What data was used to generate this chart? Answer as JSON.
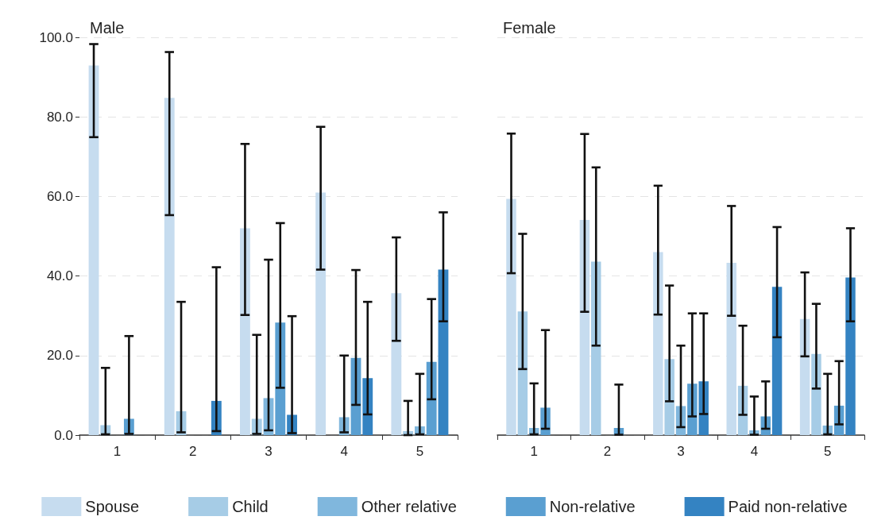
{
  "chart_data": [
    {
      "type": "bar",
      "title": "Male",
      "categories": [
        "1",
        "2",
        "3",
        "4",
        "5"
      ],
      "ylim": [
        0,
        100
      ],
      "yticks": [
        {
          "value": 0,
          "label": "0.0"
        },
        {
          "value": 20,
          "label": "20.0"
        },
        {
          "value": 40,
          "label": "40.0"
        },
        {
          "value": 60,
          "label": "60.0"
        },
        {
          "value": 80,
          "label": "80.0"
        },
        {
          "value": 100,
          "label": "100.0"
        }
      ],
      "grid": "y",
      "legend": "bottom",
      "series": [
        {
          "name": "Spouse",
          "color": "#c6dcef",
          "values": [
            92.9,
            84.8,
            52.0,
            61.0,
            35.7
          ],
          "errors": [
            [
              74.9,
              98.3
            ],
            [
              55.3,
              96.3
            ],
            [
              30.2,
              73.2
            ],
            [
              41.6,
              77.5
            ],
            [
              23.7,
              49.7
            ]
          ]
        },
        {
          "name": "Child",
          "color": "#a6cce6",
          "values": [
            2.5,
            6.0,
            4.1,
            null,
            1.0
          ],
          "errors": [
            [
              0.2,
              16.9
            ],
            [
              0.7,
              33.5
            ],
            [
              0.3,
              25.2
            ],
            null,
            [
              0,
              8.6
            ]
          ]
        },
        {
          "name": "Other relative",
          "color": "#80b7dd",
          "values": [
            null,
            null,
            9.3,
            4.5,
            2.2
          ],
          "errors": [
            null,
            null,
            [
              1.2,
              44.1
            ],
            [
              0.7,
              20.0
            ],
            [
              0.2,
              15.4
            ]
          ]
        },
        {
          "name": "Non-relative",
          "color": "#5a9fd1",
          "values": [
            4.1,
            null,
            28.3,
            19.4,
            18.4
          ],
          "errors": [
            [
              0.3,
              24.9
            ],
            null,
            [
              11.9,
              53.3
            ],
            [
              7.6,
              41.5
            ],
            [
              9.0,
              34.2
            ]
          ]
        },
        {
          "name": "Paid non-relative",
          "color": "#3483c2",
          "values": [
            null,
            8.6,
            5.1,
            14.3,
            41.6
          ],
          "errors": [
            null,
            [
              1.0,
              42.2
            ],
            [
              0.5,
              29.9
            ],
            [
              5.2,
              33.5
            ],
            [
              28.6,
              56.0
            ]
          ]
        }
      ]
    },
    {
      "type": "bar",
      "title": "Female",
      "categories": [
        "1",
        "2",
        "3",
        "4",
        "5"
      ],
      "ylim": [
        0,
        100
      ],
      "yticks": [
        0,
        20,
        40,
        60,
        80,
        100
      ],
      "tick_labels": "x",
      "grid": "y",
      "series": [
        {
          "color": "#c6dcef",
          "values": [
            59.4,
            54.1,
            46.0,
            43.3,
            29.2
          ],
          "errors": [
            [
              40.7,
              75.8
            ],
            [
              31.0,
              75.7
            ],
            [
              30.3,
              62.7
            ],
            [
              30.0,
              57.6
            ],
            [
              19.8,
              40.9
            ]
          ]
        },
        {
          "color": "#a6cce6",
          "values": [
            31.1,
            43.6,
            19.1,
            12.4,
            20.4
          ],
          "errors": [
            [
              16.6,
              50.6
            ],
            [
              22.5,
              67.3
            ],
            [
              8.5,
              37.6
            ],
            [
              5.1,
              27.5
            ],
            [
              11.7,
              33.0
            ]
          ]
        },
        {
          "color": "#80b7dd",
          "values": [
            1.8,
            null,
            7.3,
            1.2,
            2.4
          ],
          "errors": [
            [
              0.2,
              13.0
            ],
            null,
            [
              2.0,
              22.5
            ],
            [
              0.1,
              9.7
            ],
            [
              0.2,
              15.4
            ]
          ]
        },
        {
          "color": "#5a9fd1",
          "values": [
            6.9,
            1.8,
            12.9,
            4.7,
            7.4
          ],
          "errors": [
            [
              1.6,
              26.4
            ],
            [
              0.1,
              12.7
            ],
            [
              4.7,
              30.6
            ],
            [
              1.6,
              13.5
            ],
            [
              2.7,
              18.6
            ]
          ]
        },
        {
          "color": "#3483c2",
          "values": [
            null,
            null,
            13.5,
            37.3,
            39.6
          ],
          "errors": [
            null,
            null,
            [
              5.3,
              30.6
            ],
            [
              24.6,
              52.3
            ],
            [
              28.6,
              52.0
            ]
          ]
        }
      ]
    }
  ]
}
